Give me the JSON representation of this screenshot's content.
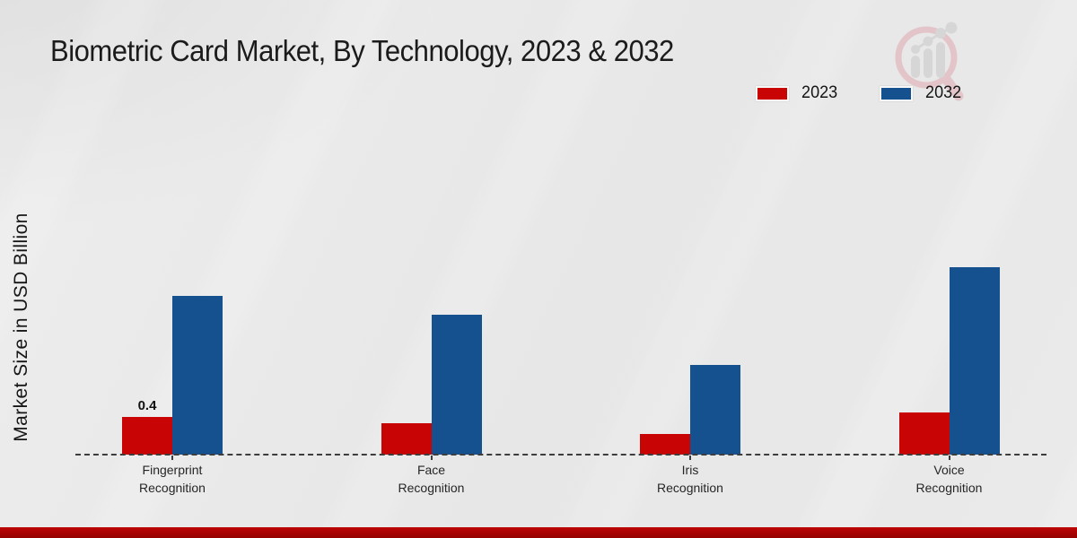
{
  "header": {
    "title": "Biometric Card Market, By Technology, 2023 & 2032"
  },
  "axes": {
    "y_label": "Market Size in USD Billion"
  },
  "legend": {
    "items": [
      {
        "label": "2023",
        "color": "#c80404"
      },
      {
        "label": "2032",
        "color": "#15508f"
      }
    ]
  },
  "chart_data": {
    "type": "bar",
    "title": "Biometric Card Market, By Technology, 2023 & 2032",
    "xlabel": "",
    "ylabel": "Market Size in USD Billion",
    "categories": [
      "Fingerprint Recognition",
      "Face Recognition",
      "Iris Recognition",
      "Voice Recognition"
    ],
    "categories_lines": [
      [
        "Fingerprint",
        "Recognition"
      ],
      [
        "Face",
        "Recognition"
      ],
      [
        "Iris",
        "Recognition"
      ],
      [
        "Voice",
        "Recognition"
      ]
    ],
    "series": [
      {
        "name": "2023",
        "color": "#c80404",
        "values": [
          0.4,
          0.33,
          0.22,
          0.45
        ],
        "data_labels": [
          "0.4",
          "",
          "",
          ""
        ]
      },
      {
        "name": "2032",
        "color": "#15508f",
        "values": [
          1.69,
          1.49,
          0.95,
          1.99
        ],
        "data_labels": [
          "",
          "",
          "",
          ""
        ]
      }
    ],
    "ylim": [
      0,
      2.2
    ],
    "grid": false,
    "legend_position": "top-right",
    "baseline_style": "dashed",
    "y_axis_ticks_visible": false
  },
  "branding": {
    "watermark_icon": "mrfr-magnifier-growth-logo",
    "footer_bar_color": "#a50303"
  },
  "colors": {
    "background": "#e9e9e9",
    "baseline": "#3d3d3d",
    "title_text": "#1b1b1b",
    "category_text": "#262626"
  }
}
